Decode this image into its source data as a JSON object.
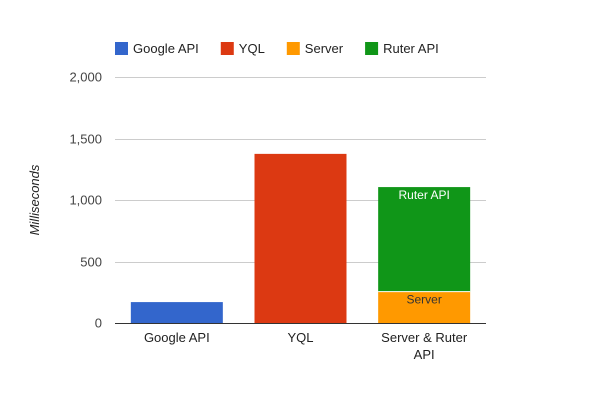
{
  "chart_data": {
    "type": "bar",
    "stacked": true,
    "title": "",
    "xlabel": "",
    "ylabel": "Milliseconds",
    "ylim": [
      0,
      2000
    ],
    "yticks": [
      0,
      500,
      1000,
      1500,
      2000
    ],
    "ytick_labels": [
      "0",
      "500",
      "1,000",
      "1,500",
      "2,000"
    ],
    "grid": true,
    "legend_position": "top-left",
    "categories": [
      "Google API",
      "YQL",
      "Server & Ruter API"
    ],
    "series": [
      {
        "name": "Google API",
        "color": "#3366cc",
        "values": [
          170,
          0,
          0
        ]
      },
      {
        "name": "YQL",
        "color": "#dc3912",
        "values": [
          0,
          1375,
          0
        ]
      },
      {
        "name": "Server",
        "color": "#ff9900",
        "values": [
          0,
          0,
          255
        ],
        "bar_labels": [
          "",
          "",
          "Server"
        ]
      },
      {
        "name": "Ruter API",
        "color": "#109618",
        "values": [
          0,
          0,
          850
        ],
        "bar_labels": [
          "",
          "",
          "Ruter API"
        ]
      }
    ]
  }
}
